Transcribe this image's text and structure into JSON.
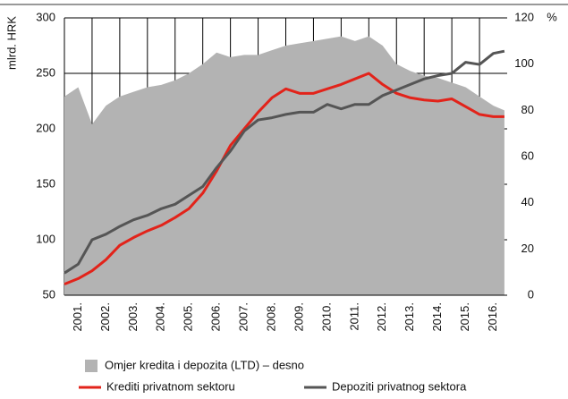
{
  "chart_data": {
    "type": "line",
    "y_label": "mlrd. HRK",
    "y2_label": "%",
    "x": [
      2001.0,
      2001.5,
      2002.0,
      2002.5,
      2003.0,
      2003.5,
      2004.0,
      2004.5,
      2005.0,
      2005.5,
      2006.0,
      2006.5,
      2007.0,
      2007.5,
      2008.0,
      2008.5,
      2009.0,
      2009.5,
      2010.0,
      2010.5,
      2011.0,
      2011.5,
      2012.0,
      2012.5,
      2013.0,
      2013.5,
      2014.0,
      2014.5,
      2015.0,
      2015.5,
      2016.0,
      2016.5,
      2016.9
    ],
    "xlim": [
      2001,
      2017
    ],
    "xticks": [
      {
        "value": 2001,
        "label": "2001."
      },
      {
        "value": 2002,
        "label": "2002."
      },
      {
        "value": 2003,
        "label": "2003."
      },
      {
        "value": 2004,
        "label": "2004."
      },
      {
        "value": 2005,
        "label": "2005."
      },
      {
        "value": 2006,
        "label": "2006."
      },
      {
        "value": 2007,
        "label": "2007."
      },
      {
        "value": 2008,
        "label": "2008."
      },
      {
        "value": 2009,
        "label": "2009."
      },
      {
        "value": 2010,
        "label": "2010."
      },
      {
        "value": 2011,
        "label": "2011."
      },
      {
        "value": 2012,
        "label": "2012."
      },
      {
        "value": 2013,
        "label": "2013."
      },
      {
        "value": 2014,
        "label": "2014."
      },
      {
        "value": 2015,
        "label": "2015."
      },
      {
        "value": 2016,
        "label": "2016."
      }
    ],
    "ylim": [
      50,
      300
    ],
    "yticks": [
      50,
      100,
      150,
      200,
      250,
      300
    ],
    "y2lim": [
      0,
      120
    ],
    "y2ticks": [
      0,
      20,
      40,
      60,
      80,
      100,
      120
    ],
    "grid": true,
    "series": [
      {
        "name": "Omjer kredita i depozita (LTD) – desno",
        "type": "area",
        "axis": "y2",
        "color": "#b3b3b3",
        "values": [
          86,
          90,
          74,
          82,
          86,
          88,
          90,
          91,
          93,
          96,
          100,
          105,
          103,
          104,
          104,
          106,
          108,
          109,
          110,
          111,
          112,
          110,
          112,
          108,
          100,
          97,
          95,
          94,
          92,
          90,
          86,
          82,
          80
        ]
      },
      {
        "name": "Krediti privatnom sektoru",
        "color": "#e2231a",
        "values": [
          60,
          65,
          72,
          82,
          95,
          102,
          108,
          113,
          120,
          128,
          142,
          162,
          185,
          200,
          215,
          228,
          236,
          232,
          232,
          236,
          240,
          245,
          250,
          240,
          232,
          228,
          226,
          225,
          227,
          220,
          213,
          211,
          211
        ]
      },
      {
        "name": "Depoziti privatnog sektora",
        "color": "#555555",
        "values": [
          70,
          78,
          100,
          105,
          112,
          118,
          122,
          128,
          132,
          140,
          148,
          165,
          180,
          198,
          208,
          210,
          213,
          215,
          215,
          222,
          218,
          222,
          222,
          230,
          235,
          240,
          245,
          248,
          250,
          260,
          258,
          268,
          270
        ]
      }
    ]
  }
}
